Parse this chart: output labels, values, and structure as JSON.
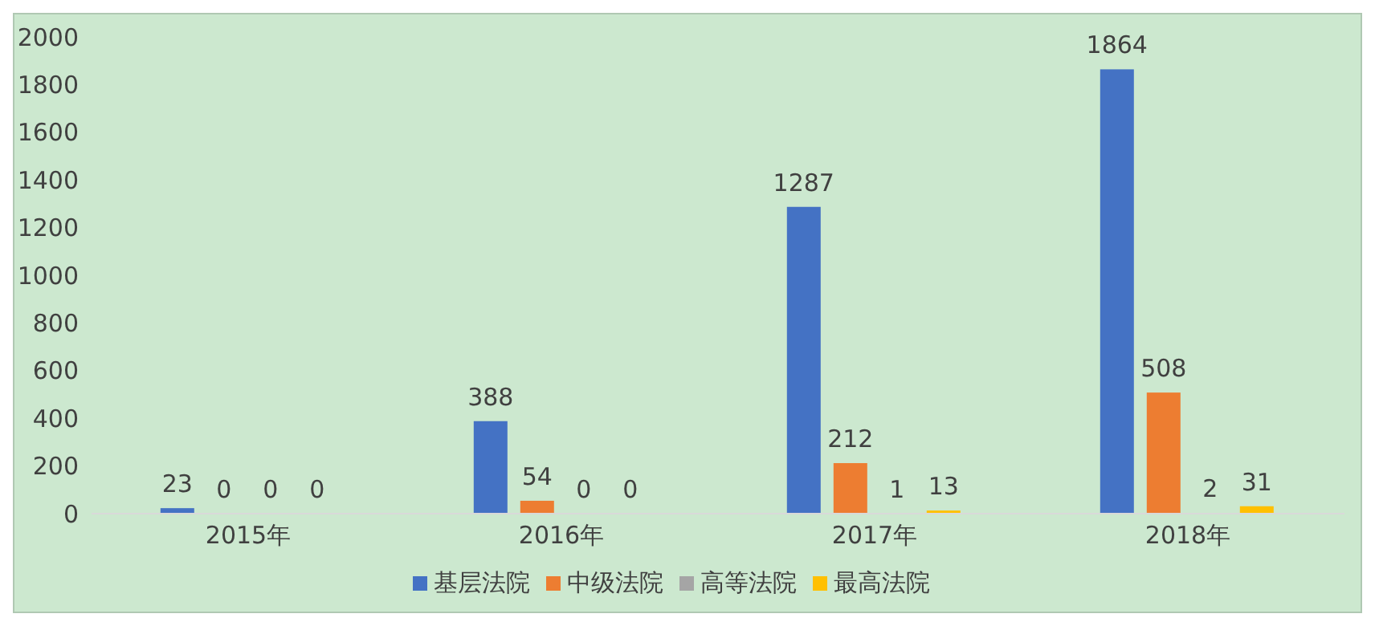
{
  "chart_data": {
    "type": "bar",
    "categories": [
      "2015年",
      "2016年",
      "2017年",
      "2018年"
    ],
    "series": [
      {
        "name": "基层法院",
        "color": "#4472c4",
        "values": [
          23,
          388,
          1287,
          1864
        ]
      },
      {
        "name": "中级法院",
        "color": "#ed7d31",
        "values": [
          0,
          54,
          212,
          508
        ]
      },
      {
        "name": "高等法院",
        "color": "#a5a5a5",
        "values": [
          0,
          0,
          1,
          2
        ]
      },
      {
        "name": "最高法院",
        "color": "#ffc000",
        "values": [
          0,
          0,
          13,
          31
        ]
      }
    ],
    "ylim": [
      0,
      2000
    ],
    "yticks": [
      0,
      200,
      400,
      600,
      800,
      1000,
      1200,
      1400,
      1600,
      1800,
      2000
    ],
    "data_labels": true,
    "legend": "bottom"
  }
}
